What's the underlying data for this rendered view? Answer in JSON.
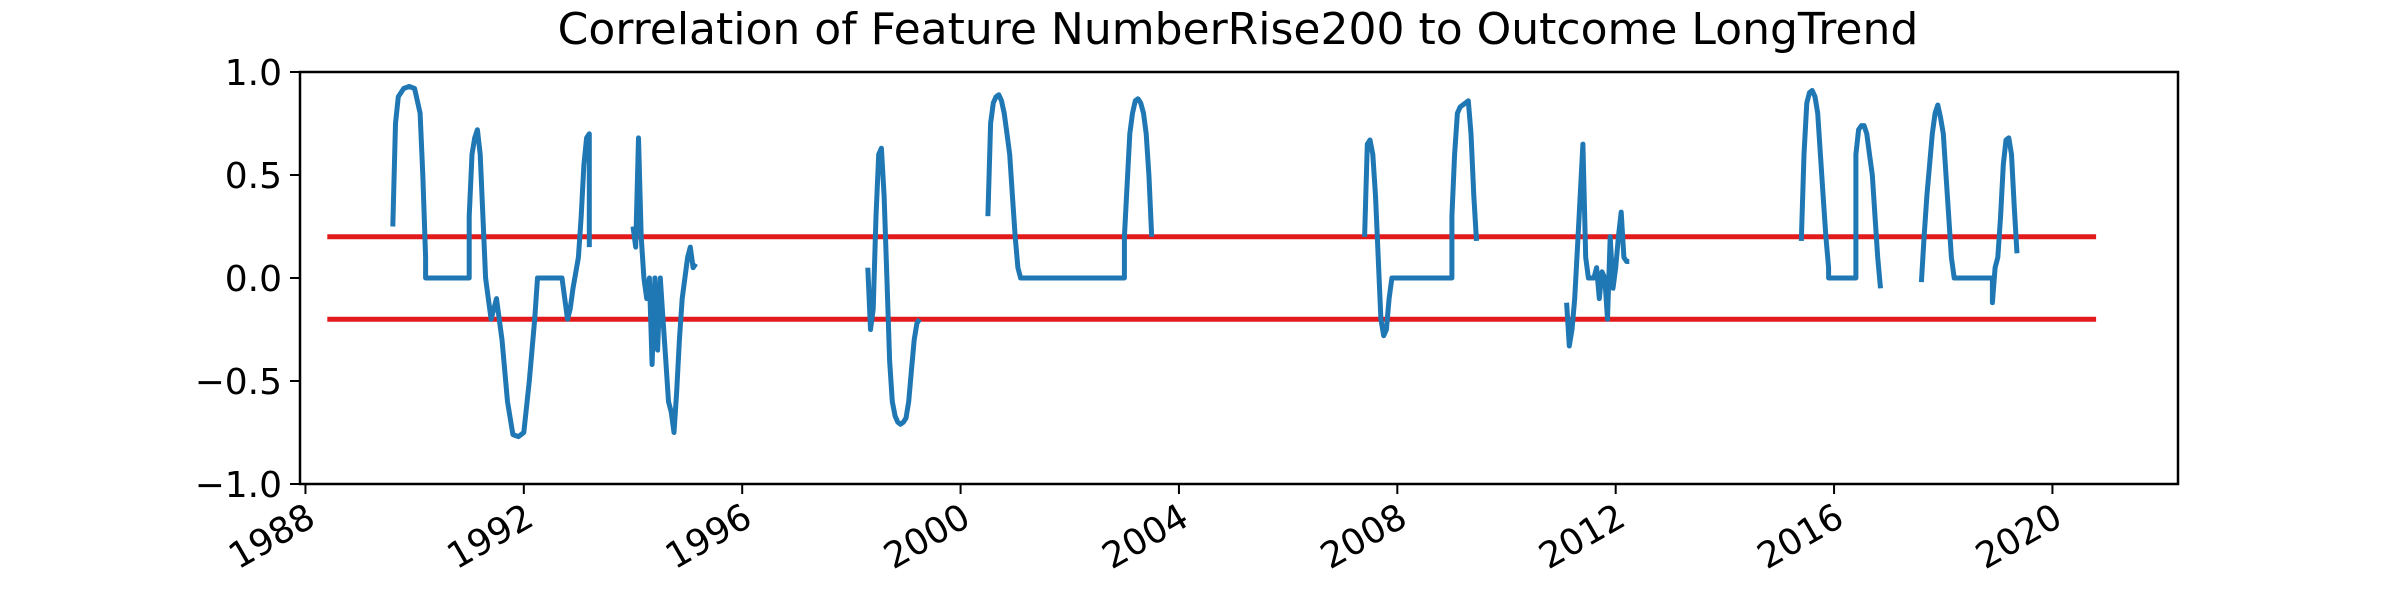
{
  "chart_data": {
    "type": "line",
    "title": "Correlation of Feature NumberRise200 to Outcome LongTrend",
    "xlabel": "",
    "ylabel": "",
    "xlim": [
      1987.9,
      2022.3
    ],
    "ylim": [
      -1.0,
      1.0
    ],
    "x_ticks": [
      1988,
      1992,
      1996,
      2000,
      2004,
      2008,
      2012,
      2016,
      2020
    ],
    "y_ticks": [
      1.0,
      0.5,
      0.0,
      -0.5,
      -1.0
    ],
    "x_tick_labels": [
      "1988",
      "1992",
      "1996",
      "2000",
      "2004",
      "2008",
      "2012",
      "2016",
      "2020"
    ],
    "y_tick_labels": [
      "1.0",
      "0.5",
      "0.0",
      "−0.5",
      "−1.0"
    ],
    "grid": false,
    "colors": {
      "series": "#1f77b4",
      "threshold": "#e31a1c"
    },
    "thresholds": [
      {
        "y": 0.2,
        "x": [
          1988.4,
          2020.8
        ]
      },
      {
        "y": -0.2,
        "x": [
          1988.4,
          2020.8
        ]
      }
    ],
    "segments": [
      {
        "x": [
          1989.6,
          1989.65,
          1989.7,
          1989.8,
          1989.9,
          1990.0,
          1990.1,
          1990.15,
          1990.2,
          1990.2,
          1990.6,
          1991.0,
          1991.0,
          1991.05,
          1991.1,
          1991.15,
          1991.2,
          1991.25,
          1991.3,
          1991.35,
          1991.4,
          1991.5,
          1991.6,
          1991.7,
          1991.8,
          1991.9,
          1992.0,
          1992.1,
          1992.2,
          1992.25,
          1992.3,
          1992.3,
          1992.7,
          1992.8,
          1992.85,
          1992.9,
          1993.0,
          1993.05,
          1993.1,
          1993.15,
          1993.2,
          1993.2
        ],
        "y": [
          0.25,
          0.75,
          0.88,
          0.92,
          0.93,
          0.92,
          0.8,
          0.5,
          0.1,
          0.0,
          0.0,
          0.0,
          0.3,
          0.6,
          0.68,
          0.72,
          0.6,
          0.3,
          0.0,
          -0.1,
          -0.2,
          -0.1,
          -0.3,
          -0.6,
          -0.76,
          -0.77,
          -0.75,
          -0.5,
          -0.2,
          0.0,
          0.0,
          0.0,
          0.0,
          -0.2,
          -0.15,
          -0.05,
          0.1,
          0.3,
          0.55,
          0.68,
          0.7,
          0.15
        ]
      },
      {
        "x": [
          1994.0,
          1994.05,
          1994.1,
          1994.15,
          1994.2,
          1994.25,
          1994.3,
          1994.35,
          1994.4,
          1994.45,
          1994.5,
          1994.55,
          1994.6,
          1994.65,
          1994.7,
          1994.75,
          1994.8,
          1994.85,
          1994.9,
          1994.95,
          1995.0,
          1995.05,
          1995.1,
          1995.15
        ],
        "y": [
          0.25,
          0.15,
          0.68,
          0.2,
          0.0,
          -0.1,
          0.0,
          -0.42,
          0.0,
          -0.35,
          0.0,
          -0.2,
          -0.4,
          -0.6,
          -0.65,
          -0.75,
          -0.55,
          -0.3,
          -0.1,
          0.0,
          0.1,
          0.15,
          0.05,
          0.07
        ]
      },
      {
        "x": [
          1998.3,
          1998.35,
          1998.4,
          1998.45,
          1998.5,
          1998.55,
          1998.6,
          1998.65,
          1998.7,
          1998.75,
          1998.8,
          1998.85,
          1998.9,
          1998.95,
          1999.0,
          1999.05,
          1999.1,
          1999.15,
          1999.2,
          1999.25
        ],
        "y": [
          0.05,
          -0.25,
          -0.15,
          0.3,
          0.6,
          0.63,
          0.4,
          0.0,
          -0.4,
          -0.6,
          -0.67,
          -0.7,
          -0.71,
          -0.7,
          -0.68,
          -0.6,
          -0.45,
          -0.3,
          -0.22,
          -0.2
        ]
      },
      {
        "x": [
          2000.5,
          2000.55,
          2000.6,
          2000.65,
          2000.7,
          2000.75,
          2000.8,
          2000.85,
          2000.9,
          2000.95,
          2001.0,
          2001.05,
          2001.1,
          2001.1,
          2003.0,
          2003.0,
          2003.05,
          2003.1,
          2003.15,
          2003.2,
          2003.25,
          2003.3,
          2003.35,
          2003.4,
          2003.45,
          2003.5
        ],
        "y": [
          0.3,
          0.75,
          0.85,
          0.88,
          0.89,
          0.86,
          0.8,
          0.7,
          0.6,
          0.4,
          0.2,
          0.05,
          0.0,
          0.0,
          0.0,
          0.2,
          0.45,
          0.7,
          0.8,
          0.86,
          0.87,
          0.85,
          0.8,
          0.7,
          0.5,
          0.2
        ]
      },
      {
        "x": [
          2007.4,
          2007.45,
          2007.5,
          2007.55,
          2007.6,
          2007.65,
          2007.7,
          2007.75,
          2007.8,
          2007.85,
          2007.9,
          2007.95,
          2008.0,
          2008.0,
          2009.0,
          2009.0,
          2009.05,
          2009.1,
          2009.15,
          2009.2,
          2009.25,
          2009.3,
          2009.35,
          2009.4,
          2009.45
        ],
        "y": [
          0.2,
          0.65,
          0.67,
          0.6,
          0.4,
          0.1,
          -0.2,
          -0.28,
          -0.25,
          -0.1,
          0.0,
          0.0,
          0.0,
          0.0,
          0.0,
          0.3,
          0.6,
          0.8,
          0.83,
          0.84,
          0.85,
          0.86,
          0.7,
          0.4,
          0.18
        ]
      },
      {
        "x": [
          2011.1,
          2011.15,
          2011.2,
          2011.25,
          2011.3,
          2011.35,
          2011.4,
          2011.45,
          2011.5,
          2011.55,
          2011.6,
          2011.65,
          2011.7,
          2011.75,
          2011.8,
          2011.85,
          2011.9,
          2011.95,
          2012.0,
          2012.05,
          2012.1,
          2012.15,
          2012.2,
          2012.25
        ],
        "y": [
          -0.12,
          -0.33,
          -0.25,
          -0.1,
          0.15,
          0.4,
          0.65,
          0.1,
          0.0,
          0.0,
          0.0,
          0.05,
          -0.1,
          0.03,
          0.0,
          -0.2,
          0.2,
          -0.05,
          0.05,
          0.2,
          0.32,
          0.1,
          0.08,
          0.08
        ]
      },
      {
        "x": [
          2015.4,
          2015.45,
          2015.5,
          2015.55,
          2015.6,
          2015.65,
          2015.7,
          2015.75,
          2015.8,
          2015.85,
          2015.9,
          2015.9,
          2016.4,
          2016.4,
          2016.45,
          2016.5,
          2016.55,
          2016.6,
          2016.65,
          2016.7,
          2016.75,
          2016.8,
          2016.85
        ],
        "y": [
          0.18,
          0.6,
          0.85,
          0.9,
          0.91,
          0.88,
          0.8,
          0.6,
          0.4,
          0.2,
          0.05,
          0.0,
          0.0,
          0.6,
          0.72,
          0.74,
          0.74,
          0.7,
          0.6,
          0.5,
          0.3,
          0.1,
          -0.05
        ]
      },
      {
        "x": [
          2017.6,
          2017.65,
          2017.7,
          2017.75,
          2017.8,
          2017.85,
          2017.9,
          2017.95,
          2018.0,
          2018.05,
          2018.1,
          2018.15,
          2018.2,
          2018.2,
          2018.9,
          2018.9,
          2018.95,
          2019.0,
          2019.05,
          2019.1,
          2019.15,
          2019.2,
          2019.25,
          2019.3,
          2019.35
        ],
        "y": [
          -0.02,
          0.2,
          0.4,
          0.55,
          0.7,
          0.8,
          0.84,
          0.78,
          0.7,
          0.5,
          0.3,
          0.1,
          0.0,
          0.0,
          0.0,
          -0.12,
          0.05,
          0.1,
          0.3,
          0.55,
          0.67,
          0.68,
          0.6,
          0.35,
          0.12
        ]
      }
    ]
  }
}
